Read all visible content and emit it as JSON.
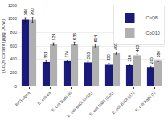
{
  "chart_data": {
    "type": "bar",
    "categories": [
      "BH3-alpha",
      "E. coli Ba",
      "E. coli BaDi (0)",
      "E. coli BaDi (0.001)",
      "E. coli BaDi (0.01)",
      "E. coli BaDi (0.1)",
      "E. coli BaDi (1)"
    ],
    "series": [
      {
        "name": "CoQ8",
        "color": "#1a1a7a",
        "values": [
          990,
          361,
          374,
          355,
          330,
          316,
          285
        ],
        "errors": [
          30,
          15,
          15,
          15,
          12,
          12,
          10
        ]
      },
      {
        "name": "CoQ10",
        "color": "#b0b0b0",
        "values": [
          990,
          629,
          636,
          604,
          493,
          463,
          380
        ],
        "errors": [
          35,
          18,
          20,
          18,
          15,
          15,
          13
        ]
      }
    ],
    "ylabel": "(CoQs content (µg/g DCW)",
    "ylim": [
      0,
      1200
    ],
    "yticks": [
      0,
      200,
      400,
      600,
      800,
      1000,
      1200
    ],
    "grid": true,
    "legend": "upper right",
    "data_labels": true
  }
}
